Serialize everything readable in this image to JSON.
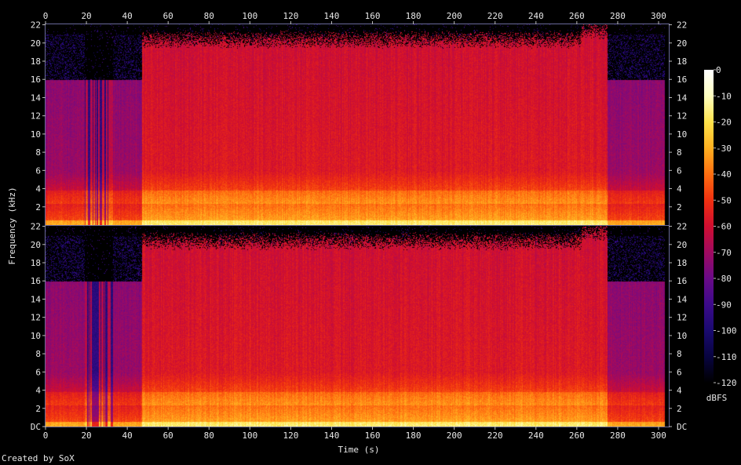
{
  "chart_data": {
    "type": "heatmap",
    "title": "",
    "xlabel": "Time (s)",
    "ylabel": "Frequency (kHz)",
    "xlim": [
      0,
      305
    ],
    "ylim_khz": [
      0,
      22.05
    ],
    "x_ticks": [
      0,
      20,
      40,
      60,
      80,
      100,
      120,
      140,
      160,
      180,
      200,
      220,
      240,
      260,
      280,
      300
    ],
    "y_ticks_top": [
      "2",
      "4",
      "6",
      "8",
      "10",
      "12",
      "14",
      "16",
      "18",
      "20",
      "22"
    ],
    "y_ticks_bottom": [
      "DC",
      "2",
      "4",
      "6",
      "8",
      "10",
      "12",
      "14",
      "16",
      "18",
      "20",
      "22"
    ],
    "y_tick_values_top": [
      2,
      4,
      6,
      8,
      10,
      12,
      14,
      16,
      18,
      20,
      22
    ],
    "y_tick_values_bottom": [
      0,
      2,
      4,
      6,
      8,
      10,
      12,
      14,
      16,
      18,
      20,
      22
    ],
    "channels": 2,
    "colorbar": {
      "label": "dBFS",
      "range": [
        -120,
        0
      ],
      "ticks": [
        "0",
        "-10",
        "-20",
        "-30",
        "-40",
        "-50",
        "-60",
        "-70",
        "-80",
        "-90",
        "-100",
        "-110",
        "-120"
      ],
      "tick_values": [
        0,
        -10,
        -20,
        -30,
        -40,
        -50,
        -60,
        -70,
        -80,
        -90,
        -100,
        -110,
        -120
      ],
      "stops": [
        {
          "db": 0,
          "color": "#ffffff"
        },
        {
          "db": -10,
          "color": "#ffffc0"
        },
        {
          "db": -20,
          "color": "#ffe24a"
        },
        {
          "db": -30,
          "color": "#ffb020"
        },
        {
          "db": -40,
          "color": "#ff6e10"
        },
        {
          "db": -50,
          "color": "#f03010"
        },
        {
          "db": -60,
          "color": "#d00e30"
        },
        {
          "db": -70,
          "color": "#a00a60"
        },
        {
          "db": -80,
          "color": "#6a0a88"
        },
        {
          "db": -90,
          "color": "#3c0a8a"
        },
        {
          "db": -100,
          "color": "#1a0a70"
        },
        {
          "db": -110,
          "color": "#080440"
        },
        {
          "db": -120,
          "color": "#000000"
        }
      ]
    },
    "sections_approx": [
      {
        "start_s": 0,
        "end_s": 19,
        "cutoff_khz": 16,
        "level": "moderate"
      },
      {
        "start_s": 19,
        "end_s": 33,
        "cutoff_khz": 16,
        "level": "pulsed"
      },
      {
        "start_s": 33,
        "end_s": 47,
        "cutoff_khz": 16,
        "level": "moderate"
      },
      {
        "start_s": 47,
        "end_s": 155,
        "cutoff_khz": 20,
        "level": "loud"
      },
      {
        "start_s": 155,
        "end_s": 175,
        "cutoff_khz": 20,
        "level": "loud"
      },
      {
        "start_s": 175,
        "end_s": 262,
        "cutoff_khz": 20,
        "level": "loud"
      },
      {
        "start_s": 262,
        "end_s": 275,
        "cutoff_khz": 21,
        "level": "loud"
      },
      {
        "start_s": 275,
        "end_s": 303,
        "cutoff_khz": 16,
        "level": "moderate"
      }
    ]
  },
  "footer": {
    "credit": "Created by SoX"
  }
}
